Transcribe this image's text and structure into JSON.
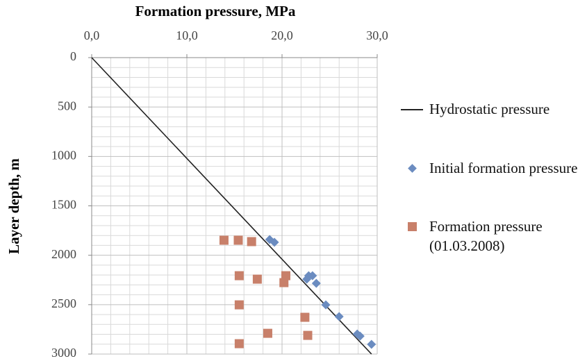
{
  "chart_data": {
    "type": "scatter",
    "title": "Formation pressure, MPa",
    "y_label": "Layer depth, m",
    "xlim": [
      0,
      30
    ],
    "ylim": [
      0,
      3000
    ],
    "y_inverted": true,
    "x_axis_position": "top",
    "xticks": [
      {
        "value": 0,
        "label": "0,0"
      },
      {
        "value": 10,
        "label": "10,0"
      },
      {
        "value": 20,
        "label": "20,0"
      },
      {
        "value": 30,
        "label": "30,0"
      }
    ],
    "yticks": [
      0,
      500,
      1000,
      1500,
      2000,
      2500,
      3000
    ],
    "grid": true,
    "minor_divisions": 5,
    "legend": "right",
    "series": [
      {
        "name": "Hydrostatic pressure",
        "color": "#222222",
        "mode": "line",
        "x": [
          0,
          29.4
        ],
        "values": [
          0,
          3000
        ]
      },
      {
        "name": "Initial formation pressure",
        "color": "#6b8cc0",
        "mode": "diamond",
        "x": [
          18.7,
          19.2,
          22.8,
          23.2,
          22.6,
          23.6,
          24.6,
          26.0,
          27.9,
          28.2,
          29.4
        ],
        "values": [
          1841,
          1869,
          2207,
          2207,
          2242,
          2284,
          2502,
          2621,
          2797,
          2818,
          2902
        ]
      },
      {
        "name": "Formation pressure (01.03.2008)",
        "color": "#c8806a",
        "mode": "square",
        "x": [
          13.9,
          15.4,
          16.8,
          15.5,
          17.4,
          20.4,
          20.2,
          15.5,
          22.4,
          18.5,
          22.7,
          15.5
        ],
        "values": [
          1848,
          1848,
          1862,
          2207,
          2242,
          2207,
          2277,
          2502,
          2628,
          2790,
          2811,
          2895
        ]
      }
    ]
  }
}
